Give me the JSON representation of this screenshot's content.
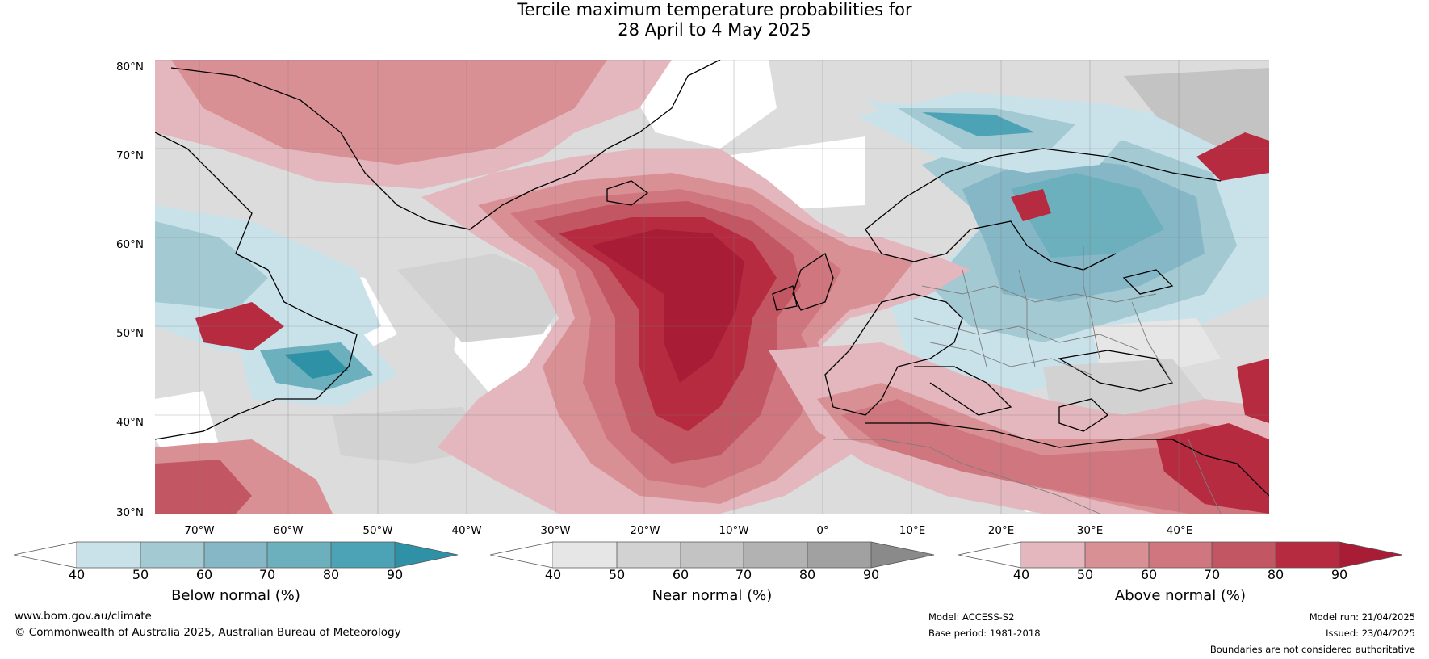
{
  "title": {
    "line1": "Tercile maximum temperature probabilities for",
    "line2": "28 April to 4 May 2025"
  },
  "map": {
    "lat_labels": [
      "80°N",
      "70°N",
      "60°N",
      "50°N",
      "40°N",
      "30°N"
    ],
    "lon_labels": [
      "70°W",
      "60°W",
      "50°W",
      "40°W",
      "30°W",
      "20°W",
      "10°W",
      "0°",
      "10°E",
      "20°E",
      "30°E",
      "40°E"
    ],
    "colors": {
      "below": [
        "#c9e2ea",
        "#a3c9d3",
        "#86b7c6",
        "#6cb0bd",
        "#4ba3b5",
        "#2e91a6"
      ],
      "near": [
        "#e6e6e6",
        "#d2d2d2",
        "#c3c3c3",
        "#b2b2b2",
        "#a1a1a1",
        "#8a8a8a"
      ],
      "above": [
        "#e3b7bd",
        "#d99095",
        "#cf767f",
        "#c25763",
        "#b62b40",
        "#a91c35"
      ]
    }
  },
  "colorbars": [
    {
      "label": "Below normal (%)",
      "ticks": [
        "40",
        "50",
        "60",
        "70",
        "80",
        "90"
      ]
    },
    {
      "label": "Near normal (%)",
      "ticks": [
        "40",
        "50",
        "60",
        "70",
        "80",
        "90"
      ]
    },
    {
      "label": "Above normal (%)",
      "ticks": [
        "40",
        "50",
        "60",
        "70",
        "80",
        "90"
      ]
    }
  ],
  "footer": {
    "website": "www.bom.gov.au/climate",
    "copyright": "© Commonwealth of Australia 2025, Australian Bureau of Meteorology",
    "model": "Model: ACCESS-S2",
    "base_period": "Base period: 1981-2018",
    "model_run": "Model run: 21/04/2025",
    "issued": "Issued: 23/04/2025",
    "disclaimer": "Boundaries are not considered authoritative"
  }
}
